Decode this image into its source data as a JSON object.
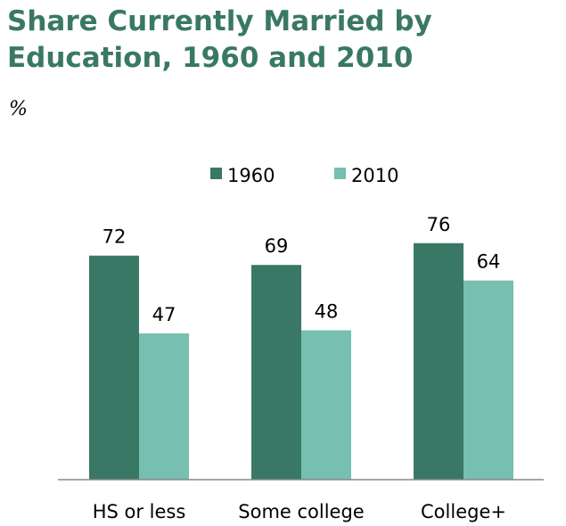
{
  "chart_data": {
    "type": "bar",
    "title": "Share Currently Married by Education, 1960 and 2010",
    "ylabel": "%",
    "xlabel": "",
    "categories": [
      "HS or less",
      "Some college",
      "College+"
    ],
    "series": [
      {
        "name": "1960",
        "color": "#3a7866",
        "values": [
          72,
          69,
          76
        ]
      },
      {
        "name": "2010",
        "color": "#77bfb0",
        "values": [
          47,
          48,
          64
        ]
      }
    ],
    "ylim": [
      0,
      100
    ],
    "grid": false,
    "legend": "top-right"
  }
}
